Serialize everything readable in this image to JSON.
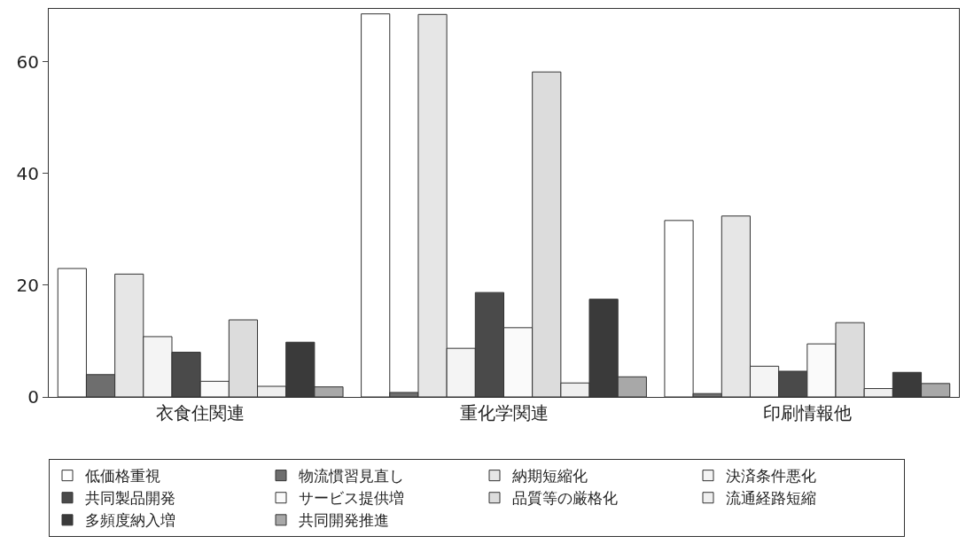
{
  "chart_data": {
    "type": "bar",
    "categories": [
      "衣食住関連",
      "重化学関連",
      "印刷情報他"
    ],
    "series": [
      {
        "name": "低価格重視",
        "color": "#ffffff",
        "values": [
          23,
          68.6,
          31.6
        ]
      },
      {
        "name": "物流慣習見直し",
        "color": "#6e6e6e",
        "values": [
          4,
          0.8,
          0.6
        ]
      },
      {
        "name": "納期短縮化",
        "color": "#e6e6e6",
        "values": [
          22,
          68.5,
          32.4
        ]
      },
      {
        "name": "決済条件悪化",
        "color": "#f4f4f4",
        "values": [
          10.8,
          8.7,
          5.5
        ]
      },
      {
        "name": "共同製品開発",
        "color": "#4a4a4a",
        "values": [
          8,
          18.7,
          4.6
        ]
      },
      {
        "name": "サービス提供増",
        "color": "#fafafa",
        "values": [
          2.8,
          12.4,
          9.5
        ]
      },
      {
        "name": "品質等の厳格化",
        "color": "#dcdcdc",
        "values": [
          13.8,
          58.2,
          13.3
        ]
      },
      {
        "name": "流通経路短縮",
        "color": "#efefef",
        "values": [
          1.9,
          2.5,
          1.5
        ]
      },
      {
        "name": "多頻度納入増",
        "color": "#3a3a3a",
        "values": [
          9.8,
          17.5,
          4.4
        ]
      },
      {
        "name": "共同開発推進",
        "color": "#a8a8a8",
        "values": [
          1.8,
          3.6,
          2.4
        ]
      }
    ],
    "ylim": [
      0,
      69.5
    ],
    "yticks": [
      0,
      20,
      40,
      60
    ],
    "grid": false,
    "legend": "bottom"
  }
}
